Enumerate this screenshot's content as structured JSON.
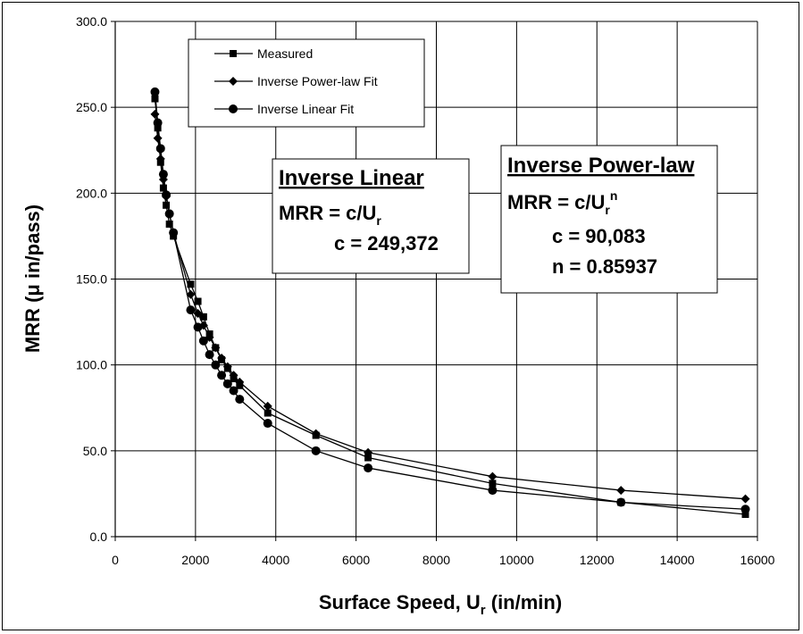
{
  "chart_data": {
    "type": "line",
    "xlabel": "Surface Speed, U",
    "xlabel_sub": "r",
    "xlabel_units": " (in/min)",
    "ylabel": "MRR (μ in/pass)",
    "xlim": [
      0,
      16000
    ],
    "ylim": [
      0,
      300
    ],
    "xticks": [
      "0",
      "2000",
      "4000",
      "6000",
      "8000",
      "10000",
      "12000",
      "14000",
      "16000"
    ],
    "yticks": [
      "0.0",
      "50.0",
      "100.0",
      "150.0",
      "200.0",
      "250.0",
      "300.0"
    ],
    "grid": true,
    "legend_position": "top-left",
    "series": [
      {
        "name": "Measured",
        "marker": "square",
        "x": [
          990,
          1060,
          1130,
          1200,
          1270,
          1350,
          1450,
          1880,
          2060,
          2200,
          2350,
          2500,
          2650,
          2800,
          2950,
          3100,
          3800,
          5000,
          6300,
          9400,
          12600,
          15700
        ],
        "y": [
          255,
          238,
          218,
          203,
          193,
          182,
          175,
          147,
          137,
          128,
          118,
          110,
          103,
          98,
          92,
          88,
          72,
          59,
          46,
          31,
          20,
          13
        ]
      },
      {
        "name": "Inverse Power-law Fit",
        "marker": "diamond",
        "x": [
          990,
          1060,
          1130,
          1200,
          1270,
          1350,
          1450,
          1880,
          2060,
          2200,
          2350,
          2500,
          2650,
          2800,
          2950,
          3100,
          3800,
          5000,
          6300,
          9400,
          12600,
          15700
        ],
        "y": [
          246,
          232,
          220,
          208,
          198,
          188,
          177,
          141,
          130,
          123,
          116,
          110,
          104,
          99,
          94,
          90,
          76,
          60,
          49,
          35,
          27,
          22
        ]
      },
      {
        "name": "Inverse Linear Fit",
        "marker": "circle",
        "x": [
          990,
          1060,
          1130,
          1200,
          1270,
          1350,
          1450,
          1880,
          2060,
          2200,
          2350,
          2500,
          2650,
          2800,
          2950,
          3100,
          3800,
          5000,
          6300,
          9400,
          12600,
          15700
        ],
        "y": [
          259,
          241,
          226,
          211,
          199,
          188,
          177,
          132,
          122,
          114,
          106,
          100,
          94,
          89,
          85,
          80,
          66,
          50,
          40,
          27,
          20,
          16
        ]
      }
    ],
    "annotations": [
      {
        "title": "Inverse Linear",
        "line1_prefix": "MRR = c/U",
        "line1_sub": "r",
        "line1_sup": "",
        "line2": "c = 249,372",
        "line3": ""
      },
      {
        "title": "Inverse Power-law",
        "line1_prefix": "MRR = c/U",
        "line1_sub": "r",
        "line1_sup": "n",
        "line2": "c = 90,083",
        "line3": "n = 0.85937"
      }
    ]
  }
}
